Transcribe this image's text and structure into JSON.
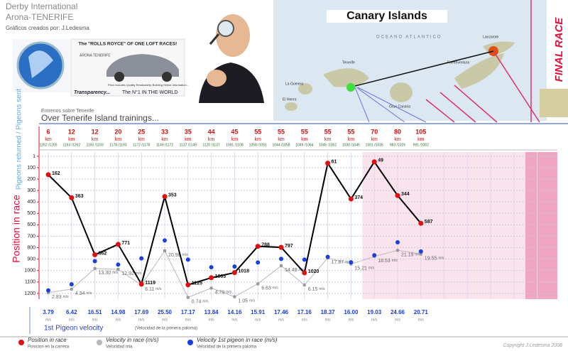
{
  "header": {
    "line1": "Derby International",
    "line2": "Arona-TENERIFE",
    "credit": "Gráficos creados por: J.Ledesma",
    "ad_title": "The \"ROLLS ROYCE\" OF ONE LOFT RACES!",
    "ad_brand": "ARONA TENERIFE",
    "ad_text": "Price includes Quality Relationship Building Online Information...",
    "ad_left": "Transparency...",
    "ad_right": "The N°1 IN THE WORLD"
  },
  "map": {
    "title": "Canary Islands",
    "ocean": "OCEANO ATLANTICO",
    "islands": [
      "Tenerife",
      "La Gomera",
      "El Hierro",
      "Gran Canaria",
      "Fuerteventura",
      "Lanzarote"
    ]
  },
  "chart_data": {
    "type": "line",
    "subtitle": "Entrenos sobre Tenerife",
    "title": "Over Tenerife Island trainings...",
    "final_label": "FINAL RACE",
    "count_axis_label": "Pigeons returned / Pigeons sent",
    "y_label": "Position in race",
    "categories": [
      6,
      12,
      12,
      20,
      25,
      33,
      35,
      44,
      45,
      55,
      55,
      55,
      55,
      55,
      70,
      80,
      105
    ],
    "category_unit": "km",
    "counts": [
      "1262 /1265",
      "1193 /1262",
      "1193 /1193",
      "1178 /1193",
      "1172 /1178",
      "1149 /1172",
      "1137 /1149",
      "1120 /1137",
      "1091 /1108",
      "1058 /1091",
      "1044 /1058",
      "1049 /1064",
      "1045 /1052",
      "1030 /1045",
      "1001 /1035",
      "983 /1026",
      "991 /1002"
    ],
    "ylim": [
      1,
      1250
    ],
    "y_inverted": true,
    "yticks": [
      1,
      100,
      200,
      300,
      400,
      500,
      600,
      700,
      800,
      900,
      1000,
      1100,
      1200
    ],
    "y2lim": [
      0,
      62
    ],
    "grid": true,
    "series": [
      {
        "name": "Position in race",
        "subname": "Posicion en la carrera",
        "color": "#000000",
        "marker_color": "#e01010",
        "values": [
          162,
          363,
          862,
          771,
          1119,
          353,
          1125,
          1063,
          1018,
          788,
          797,
          1020,
          61,
          374,
          49,
          344,
          587
        ]
      },
      {
        "name": "Velocity in race (m/s)",
        "subname": "Velocidad mia",
        "color": "#b8b8b8",
        "axis": "y2",
        "values": [
          2.83,
          4.34,
          13.3,
          12.92,
          6.11,
          20.98,
          0.74,
          4.79,
          1.05,
          6.63,
          14.49,
          6.15,
          17.87,
          15.21,
          18.53,
          21.19,
          19.55
        ],
        "value_labels": [
          "2.83",
          "4.34",
          "13.30",
          "12.92",
          "6.11",
          "20.98",
          "0.74",
          "4.79",
          "1.05",
          "6.63",
          "14.49",
          "6.15",
          "17.87",
          "15.21",
          "18.53",
          "21.19",
          "19.55"
        ]
      },
      {
        "name": "Velocity 1st pigeon in race (m/s)",
        "subname": "Velocidad de la primera paloma",
        "color": "#1a3ee0",
        "axis": "y2",
        "values": [
          3.79,
          6.42,
          16.51,
          14.98,
          17.69,
          25.5,
          17.17,
          13.84,
          14.16,
          15.91,
          17.46,
          17.16,
          18.37,
          16.0,
          19.03,
          24.66,
          20.71
        ],
        "value_labels": [
          "3.79",
          "6.42",
          "16.51",
          "14.98",
          "17.69",
          "25.50",
          "17.17",
          "13.84",
          "14.16",
          "15.91",
          "17.46",
          "17.16",
          "18.37",
          "16.00",
          "19.03",
          "24.66",
          "20.71"
        ]
      }
    ],
    "velocity_unit": "m/s",
    "velocity_title": "1st Pigeon velocity",
    "velocity_subtitle": "(Velocidad de la primera paloma)"
  },
  "copyright": "Copyright J.Ledesma 2008"
}
